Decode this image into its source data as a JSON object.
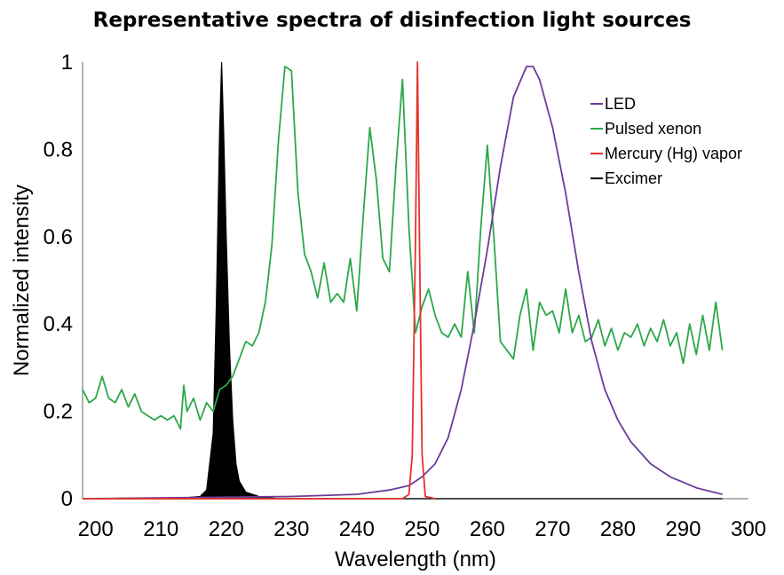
{
  "chart_data": {
    "type": "line",
    "title": "Representative spectra of disinfection light sources",
    "xlabel": "Wavelength (nm)",
    "ylabel": "Normalized intensity",
    "xlim": [
      198,
      300
    ],
    "ylim": [
      0,
      1
    ],
    "x_ticks": [
      "200",
      "210",
      "220",
      "230",
      "240",
      "250",
      "260",
      "270",
      "280",
      "290",
      "300"
    ],
    "y_ticks": [
      "0",
      "0.2",
      "0.4",
      "0.6",
      "0.8",
      "1"
    ],
    "x_tick_values": [
      200,
      210,
      220,
      230,
      240,
      250,
      260,
      270,
      280,
      290,
      300
    ],
    "y_tick_values": [
      0,
      0.2,
      0.4,
      0.6,
      0.8,
      1
    ],
    "grid": false,
    "legend_position": "top-right",
    "series": [
      {
        "name": "LED",
        "color": "#6a3d9a",
        "points": [
          [
            198,
            0
          ],
          [
            230,
            0.005
          ],
          [
            240,
            0.01
          ],
          [
            245,
            0.02
          ],
          [
            248,
            0.03
          ],
          [
            250,
            0.05
          ],
          [
            252,
            0.08
          ],
          [
            254,
            0.14
          ],
          [
            256,
            0.25
          ],
          [
            258,
            0.4
          ],
          [
            260,
            0.57
          ],
          [
            262,
            0.76
          ],
          [
            264,
            0.92
          ],
          [
            266,
            0.99
          ],
          [
            267,
            0.99
          ],
          [
            268,
            0.96
          ],
          [
            270,
            0.85
          ],
          [
            272,
            0.7
          ],
          [
            274,
            0.52
          ],
          [
            276,
            0.36
          ],
          [
            278,
            0.25
          ],
          [
            280,
            0.18
          ],
          [
            282,
            0.13
          ],
          [
            285,
            0.08
          ],
          [
            288,
            0.05
          ],
          [
            292,
            0.025
          ],
          [
            296,
            0.01
          ]
        ]
      },
      {
        "name": "Pulsed xenon",
        "color": "#2ca84a",
        "points": [
          [
            198,
            0.25
          ],
          [
            199,
            0.22
          ],
          [
            200,
            0.23
          ],
          [
            201,
            0.28
          ],
          [
            202,
            0.23
          ],
          [
            203,
            0.22
          ],
          [
            204,
            0.25
          ],
          [
            205,
            0.21
          ],
          [
            206,
            0.24
          ],
          [
            207,
            0.2
          ],
          [
            208,
            0.19
          ],
          [
            209,
            0.18
          ],
          [
            210,
            0.19
          ],
          [
            211,
            0.18
          ],
          [
            212,
            0.19
          ],
          [
            213,
            0.16
          ],
          [
            213.5,
            0.26
          ],
          [
            214,
            0.2
          ],
          [
            215,
            0.23
          ],
          [
            216,
            0.18
          ],
          [
            217,
            0.22
          ],
          [
            218,
            0.2
          ],
          [
            219,
            0.25
          ],
          [
            220,
            0.26
          ],
          [
            221,
            0.28
          ],
          [
            222,
            0.32
          ],
          [
            223,
            0.36
          ],
          [
            224,
            0.35
          ],
          [
            225,
            0.38
          ],
          [
            226,
            0.45
          ],
          [
            227,
            0.58
          ],
          [
            228,
            0.82
          ],
          [
            229,
            0.99
          ],
          [
            230,
            0.98
          ],
          [
            231,
            0.7
          ],
          [
            232,
            0.56
          ],
          [
            233,
            0.52
          ],
          [
            234,
            0.46
          ],
          [
            235,
            0.54
          ],
          [
            236,
            0.45
          ],
          [
            237,
            0.47
          ],
          [
            238,
            0.45
          ],
          [
            239,
            0.55
          ],
          [
            240,
            0.43
          ],
          [
            241,
            0.65
          ],
          [
            242,
            0.85
          ],
          [
            243,
            0.73
          ],
          [
            244,
            0.55
          ],
          [
            245,
            0.52
          ],
          [
            246,
            0.76
          ],
          [
            247,
            0.96
          ],
          [
            248,
            0.62
          ],
          [
            249,
            0.38
          ],
          [
            250,
            0.44
          ],
          [
            251,
            0.48
          ],
          [
            252,
            0.42
          ],
          [
            253,
            0.38
          ],
          [
            254,
            0.37
          ],
          [
            255,
            0.4
          ],
          [
            256,
            0.37
          ],
          [
            257,
            0.52
          ],
          [
            258,
            0.38
          ],
          [
            259,
            0.62
          ],
          [
            260,
            0.81
          ],
          [
            261,
            0.6
          ],
          [
            262,
            0.36
          ],
          [
            263,
            0.34
          ],
          [
            264,
            0.32
          ],
          [
            265,
            0.42
          ],
          [
            266,
            0.48
          ],
          [
            267,
            0.34
          ],
          [
            268,
            0.45
          ],
          [
            269,
            0.42
          ],
          [
            270,
            0.43
          ],
          [
            271,
            0.38
          ],
          [
            272,
            0.48
          ],
          [
            273,
            0.38
          ],
          [
            274,
            0.42
          ],
          [
            275,
            0.36
          ],
          [
            276,
            0.37
          ],
          [
            277,
            0.41
          ],
          [
            278,
            0.35
          ],
          [
            279,
            0.39
          ],
          [
            280,
            0.34
          ],
          [
            281,
            0.38
          ],
          [
            282,
            0.37
          ],
          [
            283,
            0.4
          ],
          [
            284,
            0.35
          ],
          [
            285,
            0.39
          ],
          [
            286,
            0.36
          ],
          [
            287,
            0.41
          ],
          [
            288,
            0.35
          ],
          [
            289,
            0.38
          ],
          [
            290,
            0.31
          ],
          [
            291,
            0.4
          ],
          [
            292,
            0.33
          ],
          [
            293,
            0.42
          ],
          [
            294,
            0.34
          ],
          [
            295,
            0.45
          ],
          [
            296,
            0.34
          ]
        ]
      },
      {
        "name": "Mercury (Hg) vapor",
        "color": "#e8312b",
        "points": [
          [
            198,
            0
          ],
          [
            247,
            0
          ],
          [
            248,
            0.01
          ],
          [
            248.5,
            0.1
          ],
          [
            249,
            0.6
          ],
          [
            249.3,
            1
          ],
          [
            249.6,
            0.6
          ],
          [
            250,
            0.1
          ],
          [
            250.5,
            0.005
          ],
          [
            252,
            0
          ]
        ]
      },
      {
        "name": "Excimer",
        "color": "#000000",
        "fill": true,
        "points": [
          [
            198,
            0
          ],
          [
            212,
            0
          ],
          [
            216,
            0.005
          ],
          [
            217,
            0.02
          ],
          [
            218,
            0.15
          ],
          [
            218.5,
            0.45
          ],
          [
            219,
            0.85
          ],
          [
            219.3,
            1
          ],
          [
            219.6,
            0.85
          ],
          [
            220,
            0.6
          ],
          [
            220.5,
            0.35
          ],
          [
            221,
            0.18
          ],
          [
            221.5,
            0.08
          ],
          [
            222,
            0.04
          ],
          [
            223,
            0.015
          ],
          [
            225,
            0.005
          ],
          [
            228,
            0
          ],
          [
            296,
            0
          ]
        ]
      }
    ]
  }
}
